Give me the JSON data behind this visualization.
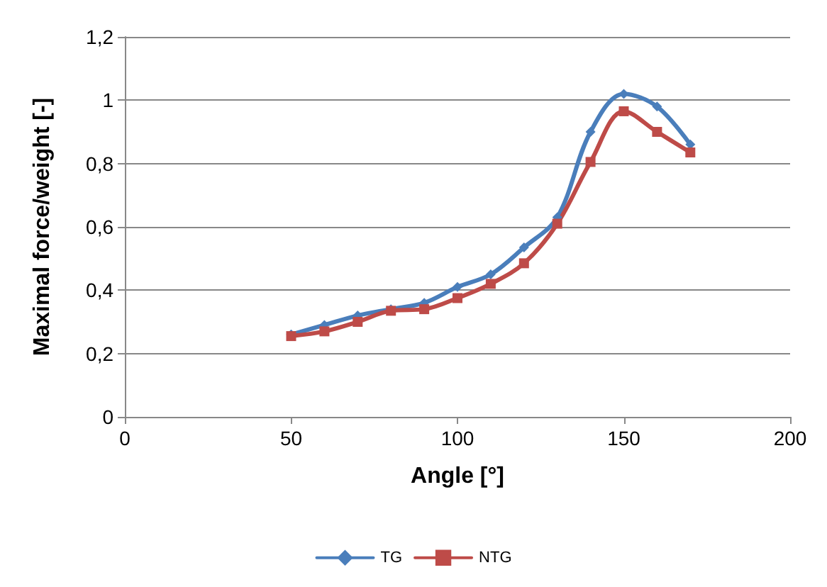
{
  "chart_data": {
    "type": "line",
    "xlabel": "Angle [°]",
    "ylabel": "Maximal force/weight [-]",
    "x": [
      50,
      60,
      70,
      80,
      90,
      100,
      110,
      120,
      130,
      140,
      150,
      160,
      170
    ],
    "series": [
      {
        "name": "TG",
        "color": "#4a7ebb",
        "marker": "diamond",
        "values": [
          0.26,
          0.29,
          0.32,
          0.34,
          0.36,
          0.41,
          0.45,
          0.535,
          0.63,
          0.9,
          1.02,
          0.98,
          0.86
        ]
      },
      {
        "name": "NTG",
        "color": "#be4b48",
        "marker": "square",
        "values": [
          0.255,
          0.27,
          0.3,
          0.335,
          0.34,
          0.375,
          0.42,
          0.485,
          0.61,
          0.805,
          0.965,
          0.9,
          0.835
        ]
      }
    ],
    "xlim": [
      0,
      200
    ],
    "xticks": [
      0,
      50,
      100,
      150,
      200
    ],
    "ylim": [
      0,
      1.2
    ],
    "yticks": [
      0,
      {
        "value": 0.2,
        "label": "0,2"
      },
      {
        "value": 0.4,
        "label": "0,4"
      },
      {
        "value": 0.6,
        "label": "0,6"
      },
      {
        "value": 0.8,
        "label": "0,8"
      },
      1,
      {
        "value": 1.2,
        "label": "1,2"
      }
    ],
    "grid": "y",
    "legend": "bottom",
    "line_style": "solid"
  }
}
